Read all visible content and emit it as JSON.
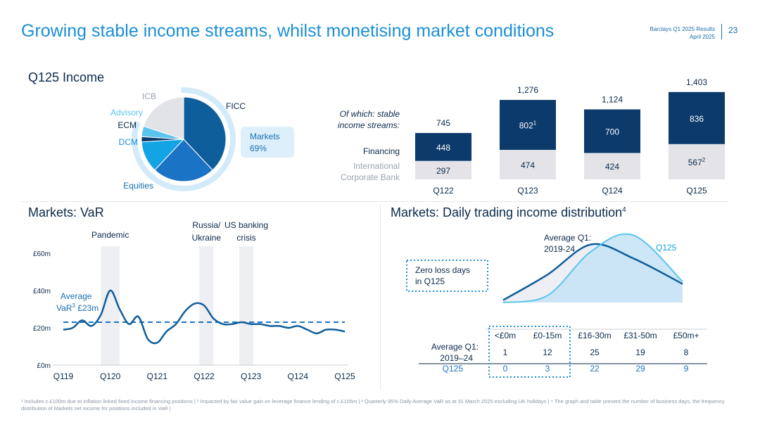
{
  "header": {
    "title": "Growing stable income streams, whilst monetising market conditions",
    "report": "Barclays Q1 2025 Results",
    "date": "April 2025",
    "page": "23"
  },
  "income_section": {
    "title": "Q125 Income",
    "stable_label_1": "Of which: stable",
    "stable_label_2": "income streams:",
    "markets_box_1": "Markets",
    "markets_box_2": "69%",
    "financing_label": "Financing",
    "icb_label_1": "International",
    "icb_label_2": "Corporate Bank"
  },
  "var_section": {
    "title": "Markets: VaR"
  },
  "dist_section": {
    "title": "Markets: Daily trading income distribution",
    "title_sup": "4",
    "zero_loss_1": "Zero loss days",
    "zero_loss_2": "in Q125"
  },
  "footnotes": "¹ Includes c.£100m due to inflation linked fixed income financing positions | ² Impacted by fair value gain on leverage finance lending of c.£105m | ³ Quarterly 95% Daily Average VaR as at 31 March 2025 excluding UK holidays | ⁴ The graph and table present the number of business days, the frequency distribution of Markets net income for positions included in VaR |",
  "colors": {
    "navy": "#0b3a6b",
    "fill_blue": "#0f5e9c",
    "mid_blue": "#1a73c4",
    "bright_blue": "#13a4e6",
    "light_blue": "#5bc4ee",
    "grey_bar": "#e4e4e8",
    "accent": "#1a8fd6"
  },
  "chart_data": [
    {
      "type": "pie",
      "title": "Q125 Income",
      "slices": [
        {
          "label": "FICC",
          "value": 38
        },
        {
          "label": "Equities",
          "value": 24
        },
        {
          "label": "DCM",
          "value": 12
        },
        {
          "label": "ECM",
          "value": 2
        },
        {
          "label": "Advisory",
          "value": 4
        },
        {
          "label": "ICB",
          "value": 20
        }
      ],
      "annotation": "Markets 69%"
    },
    {
      "type": "bar",
      "title": "Of which: stable income streams",
      "categories": [
        "Q122",
        "Q123",
        "Q124",
        "Q125"
      ],
      "totals": [
        "745",
        "1,276",
        "1,124",
        "1,403"
      ],
      "series": [
        {
          "name": "Financing",
          "values": [
            448,
            802,
            700,
            836
          ],
          "labels": [
            "448",
            "802",
            "700",
            "836"
          ],
          "sups": [
            "",
            "1",
            "",
            ""
          ]
        },
        {
          "name": "International Corporate Bank",
          "values": [
            297,
            474,
            424,
            567
          ],
          "labels": [
            "297",
            "474",
            "424",
            "567"
          ],
          "sups": [
            "",
            "",
            "",
            "2"
          ]
        }
      ]
    },
    {
      "type": "line",
      "title": "Markets: VaR",
      "ylabel": "£m",
      "ylim": [
        0,
        60
      ],
      "yticks": [
        0,
        20,
        40,
        60
      ],
      "ytick_labels": [
        "£0m",
        "£20m",
        "£40m",
        "£60m"
      ],
      "xtick_labels": [
        "Q119",
        "Q120",
        "Q121",
        "Q122",
        "Q123",
        "Q124",
        "Q125"
      ],
      "x": [
        0,
        0.2,
        0.4,
        0.6,
        0.8,
        1.0,
        1.2,
        1.4,
        1.6,
        1.8,
        2.0,
        2.2,
        2.4,
        2.6,
        2.8,
        3.0,
        3.2,
        3.4,
        3.6,
        3.8,
        4.0,
        4.2,
        4.4,
        4.6,
        4.8,
        5.0,
        5.2,
        5.4,
        5.6,
        5.8,
        6.0
      ],
      "values": [
        19,
        20,
        24,
        21,
        27,
        40,
        30,
        22,
        26,
        14,
        12,
        18,
        22,
        29,
        33,
        32,
        25,
        22,
        22,
        23,
        22,
        22,
        21,
        21,
        20,
        21,
        19,
        17,
        19,
        19,
        18
      ],
      "average": 23,
      "average_label_1": "Average",
      "average_label_2": "VaR",
      "average_sup": "3",
      "average_value": "£23m",
      "shaded_regions": [
        {
          "label_1": "Pandemic",
          "label_2": "",
          "from": 0.8,
          "to": 1.2
        },
        {
          "label_1": "Russia/",
          "label_2": "Ukraine",
          "from": 2.9,
          "to": 3.2
        },
        {
          "label_1": "US banking",
          "label_2": "crisis",
          "from": 3.75,
          "to": 4.05
        }
      ]
    },
    {
      "type": "area",
      "title": "Markets: Daily trading income distribution",
      "categories": [
        "<£0m",
        "£0-15m",
        "£16-30m",
        "£31-50m",
        "£50m+"
      ],
      "series": [
        {
          "name": "Average Q1: 2019–24",
          "values": [
            1,
            12,
            25,
            19,
            8
          ],
          "labels": [
            "1",
            "12",
            "25",
            "19",
            "8"
          ]
        },
        {
          "name": "Q125",
          "values": [
            0,
            3,
            22,
            29,
            9
          ],
          "labels": [
            "0",
            "3",
            "22",
            "29",
            "9"
          ]
        }
      ],
      "curve_label_avg_1": "Average Q1:",
      "curve_label_avg_2": "2019-24",
      "curve_label_q125": "Q125",
      "table_row_avg_1": "Average Q1:",
      "table_row_avg_2": "2019–24",
      "table_row_q125": "Q125"
    }
  ]
}
